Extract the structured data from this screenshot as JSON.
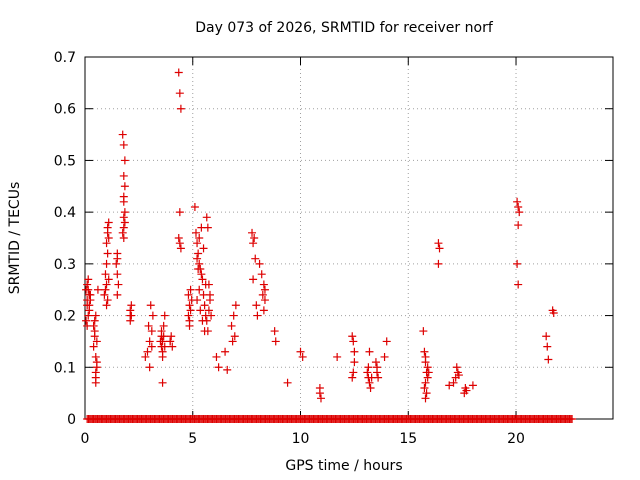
{
  "chart_data": {
    "type": "scatter",
    "title": "Day 073 of 2026, SRMTID for receiver norf",
    "xlabel": "GPS time / hours",
    "ylabel": "SRMTID / TECUs",
    "xlim": [
      0,
      24.5
    ],
    "ylim": [
      0,
      0.7
    ],
    "xticks": [
      0,
      5,
      10,
      15,
      20
    ],
    "yticks": [
      0,
      0.1,
      0.2,
      0.3,
      0.4,
      0.5,
      0.6,
      0.7
    ],
    "ytick_labels": [
      "0",
      "0.1",
      "0.2",
      "0.3",
      "0.4",
      "0.5",
      "0.6",
      "0.7"
    ],
    "grid": true,
    "marker": "+",
    "series": [
      {
        "name": "SRMTID",
        "color": "#dd0000",
        "x": [
          0.05,
          0.1,
          0.15,
          0.2,
          0.25,
          0.05,
          0.1,
          0.15,
          0.2,
          0.25,
          0.1,
          0.15,
          0.2,
          0.1,
          0.2,
          0.4,
          0.45,
          0.5,
          0.55,
          0.4,
          0.5,
          0.45,
          0.55,
          0.5,
          0.5,
          0.5,
          0.55,
          0.45,
          0.6,
          0.9,
          0.95,
          1.0,
          1.05,
          1.1,
          0.95,
          1.0,
          1.05,
          1.1,
          1.05,
          1.0,
          1.1,
          1.05,
          1.0,
          1.5,
          1.5,
          1.45,
          1.5,
          1.55,
          1.5,
          1.75,
          1.8,
          1.85,
          1.8,
          1.85,
          1.8,
          1.85,
          1.8,
          1.75,
          1.8,
          1.85,
          1.8,
          1.8,
          2.1,
          2.15,
          2.1,
          2.15,
          2.1,
          2.8,
          2.9,
          3.0,
          3.1,
          3.15,
          3.05,
          2.95,
          3.1,
          3.0,
          3.5,
          3.55,
          3.6,
          3.65,
          3.7,
          3.55,
          3.6,
          3.65,
          3.7,
          3.6,
          3.6,
          3.55,
          3.95,
          4.0,
          4.05,
          3.95,
          4.35,
          4.4,
          4.45,
          4.4,
          4.35,
          4.4,
          4.45,
          4.8,
          4.85,
          4.9,
          4.95,
          4.8,
          4.85,
          4.9,
          4.85,
          5.1,
          5.15,
          5.2,
          5.25,
          5.3,
          5.35,
          5.4,
          5.45,
          5.5,
          5.55,
          5.6,
          5.2,
          5.3,
          5.4,
          5.5,
          5.6,
          5.25,
          5.35,
          5.45,
          5.55,
          5.3,
          5.2,
          5.65,
          5.7,
          5.75,
          5.8,
          5.85,
          5.7,
          5.8,
          5.75,
          5.65,
          6.1,
          6.2,
          6.5,
          6.6,
          6.8,
          6.9,
          7.0,
          6.85,
          6.95,
          7.75,
          7.8,
          7.85,
          7.9,
          7.8,
          7.95,
          8.0,
          8.1,
          8.2,
          8.3,
          8.35,
          8.25,
          8.3,
          8.35,
          8.8,
          8.85,
          9.4,
          10.0,
          10.1,
          10.9,
          10.95,
          10.9,
          11.7,
          12.4,
          12.45,
          12.5,
          12.45,
          12.4,
          12.5,
          13.1,
          13.15,
          13.2,
          13.25,
          13.3,
          13.2,
          13.15,
          13.5,
          13.55,
          13.6,
          13.55,
          13.9,
          14.0,
          15.7,
          15.75,
          15.8,
          15.85,
          15.9,
          15.8,
          15.75,
          15.85,
          15.8,
          15.9,
          15.95,
          15.8,
          16.4,
          16.45,
          16.4,
          16.9,
          17.1,
          17.2,
          17.3,
          17.35,
          17.25,
          17.6,
          17.65,
          17.7,
          18.0,
          20.05,
          20.1,
          20.15,
          20.1,
          20.05,
          20.1,
          21.4,
          21.45,
          21.5,
          21.7,
          21.75
        ],
        "y": [
          0.25,
          0.22,
          0.2,
          0.24,
          0.23,
          0.19,
          0.26,
          0.25,
          0.21,
          0.24,
          0.23,
          0.27,
          0.22,
          0.18,
          0.24,
          0.18,
          0.17,
          0.2,
          0.15,
          0.14,
          0.12,
          0.16,
          0.1,
          0.09,
          0.08,
          0.07,
          0.11,
          0.19,
          0.25,
          0.24,
          0.25,
          0.26,
          0.23,
          0.27,
          0.28,
          0.3,
          0.32,
          0.35,
          0.36,
          0.34,
          0.38,
          0.37,
          0.22,
          0.28,
          0.31,
          0.3,
          0.24,
          0.26,
          0.32,
          0.55,
          0.53,
          0.5,
          0.47,
          0.45,
          0.43,
          0.4,
          0.37,
          0.36,
          0.35,
          0.38,
          0.39,
          0.42,
          0.21,
          0.2,
          0.19,
          0.22,
          0.2,
          0.12,
          0.13,
          0.15,
          0.17,
          0.2,
          0.22,
          0.18,
          0.14,
          0.1,
          0.15,
          0.14,
          0.13,
          0.16,
          0.14,
          0.17,
          0.12,
          0.18,
          0.2,
          0.07,
          0.15,
          0.16,
          0.15,
          0.16,
          0.14,
          0.15,
          0.67,
          0.63,
          0.6,
          0.4,
          0.35,
          0.34,
          0.33,
          0.24,
          0.22,
          0.21,
          0.23,
          0.2,
          0.19,
          0.25,
          0.18,
          0.41,
          0.36,
          0.34,
          0.32,
          0.3,
          0.29,
          0.28,
          0.27,
          0.24,
          0.22,
          0.2,
          0.31,
          0.35,
          0.37,
          0.33,
          0.26,
          0.29,
          0.21,
          0.19,
          0.17,
          0.25,
          0.23,
          0.39,
          0.37,
          0.26,
          0.24,
          0.2,
          0.17,
          0.23,
          0.21,
          0.19,
          0.12,
          0.1,
          0.13,
          0.095,
          0.18,
          0.2,
          0.22,
          0.15,
          0.16,
          0.36,
          0.34,
          0.35,
          0.31,
          0.27,
          0.22,
          0.2,
          0.3,
          0.28,
          0.26,
          0.25,
          0.24,
          0.21,
          0.23,
          0.17,
          0.15,
          0.07,
          0.13,
          0.12,
          0.06,
          0.04,
          0.05,
          0.12,
          0.16,
          0.15,
          0.11,
          0.09,
          0.08,
          0.13,
          0.09,
          0.08,
          0.07,
          0.06,
          0.08,
          0.13,
          0.1,
          0.11,
          0.09,
          0.08,
          0.1,
          0.12,
          0.15,
          0.17,
          0.13,
          0.11,
          0.09,
          0.08,
          0.07,
          0.06,
          0.05,
          0.04,
          0.1,
          0.09,
          0.12,
          0.34,
          0.33,
          0.3,
          0.065,
          0.07,
          0.08,
          0.09,
          0.085,
          0.1,
          0.05,
          0.06,
          0.055,
          0.065,
          0.42,
          0.41,
          0.4,
          0.375,
          0.3,
          0.26,
          0.16,
          0.14,
          0.115,
          0.21,
          0.205
        ]
      }
    ],
    "zero_band": {
      "x_start": 0.1,
      "x_end": 22.6,
      "y": 0
    }
  }
}
